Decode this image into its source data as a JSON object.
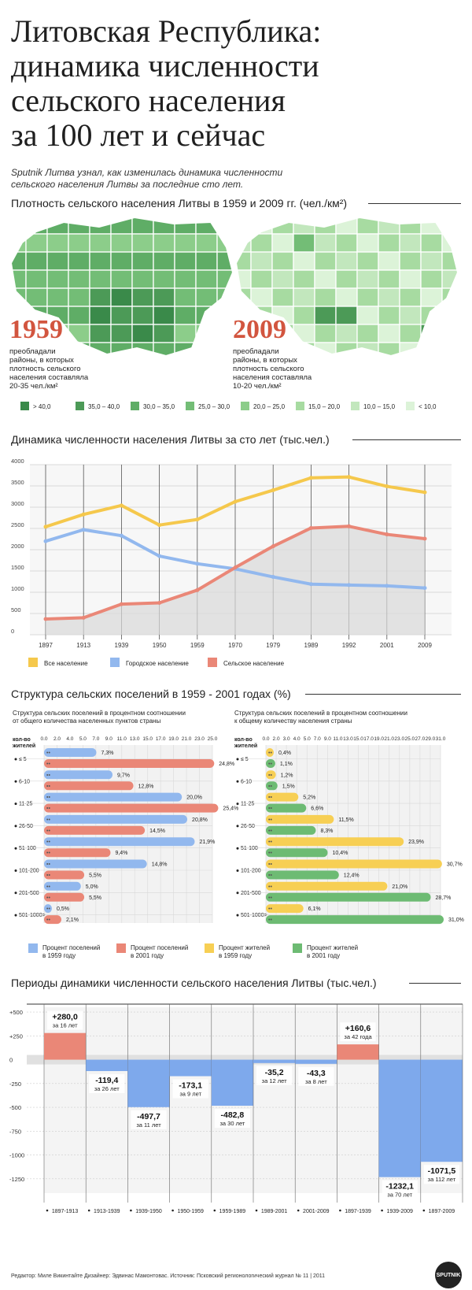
{
  "header": {
    "title_lines": [
      "Литовская Республика:",
      "динамика численности",
      "сельского населения",
      "за 100 лет и сейчас"
    ],
    "lead_lines": [
      "Sputnik Литва узнал, как изменилась динамика численности",
      "сельского населения Литвы за последние сто лет."
    ]
  },
  "colors": {
    "all": "#f5c84c",
    "urban": "#92b8ee",
    "rural": "#ea8777",
    "res1959": "#f7cf54",
    "res2001": "#6dbb73",
    "neg_bar": "#7ea9ec",
    "pos_bar": "#ea8777",
    "density": [
      "#3a8a4a",
      "#4c9a57",
      "#5fad66",
      "#73bd76",
      "#8ccd8a",
      "#a7dba1",
      "#c2e7bd",
      "#dcf3d8"
    ]
  },
  "maps": {
    "title": "Плотность сельского населения Литвы в 1959 и 2009 гг. (чел./км²)",
    "left": {
      "year": "1959",
      "text": [
        "преобладали",
        "районы, в которых",
        "плотность сельского",
        "населения составляла",
        "20-35 чел./км²"
      ]
    },
    "right": {
      "year": "2009",
      "text": [
        "преобладали",
        "районы, в которых",
        "плотность сельского",
        "населения составляла",
        "10-20 чел./км²"
      ]
    },
    "legend": [
      "> 40,0",
      "35,0 – 40,0",
      "30,0 – 35,0",
      "25,0 – 30,0",
      "20,0 – 25,0",
      "15,0 – 20,0",
      "10,0 – 15,0",
      "< 10,0"
    ]
  },
  "chart_data": [
    {
      "type": "line",
      "title": "Динамика численности населения Литвы за сто лет (тыс.чел.)",
      "x": [
        "1897",
        "1913",
        "1939",
        "1950",
        "1959",
        "1970",
        "1979",
        "1989",
        "1992",
        "2001",
        "2009"
      ],
      "ylim": [
        0,
        4000
      ],
      "yticks": [
        0,
        500,
        1000,
        1500,
        2000,
        2500,
        3000,
        3500,
        4000
      ],
      "series": [
        {
          "name": "Все население",
          "color": "#f5c84c",
          "values": [
            2540,
            2830,
            3040,
            2580,
            2710,
            3130,
            3400,
            3690,
            3710,
            3490,
            3350
          ]
        },
        {
          "name": "Городское население",
          "color": "#92b8ee",
          "values": [
            2200,
            2470,
            2330,
            1850,
            1670,
            1550,
            1360,
            1190,
            1170,
            1150,
            1100
          ]
        },
        {
          "name": "Сельское население",
          "color": "#ea8777",
          "values": [
            370,
            400,
            720,
            750,
            1050,
            1580,
            2080,
            2510,
            2550,
            2360,
            2260
          ]
        }
      ],
      "grid": true,
      "legend_position": "bottom"
    },
    {
      "type": "bar",
      "title": "Структура сельских поселений в 1959 - 2001 годах (%)",
      "panel_title": [
        "Структура сельских поселений в процентном соотношении",
        "от общего количества населенных пунктов страны"
      ],
      "group_header": [
        "кол-во",
        "жителей"
      ],
      "categories": [
        "≤ 5",
        "6-10",
        "11-25",
        "26-50",
        "51-100",
        "101-200",
        "201-500",
        "501-1000>"
      ],
      "xticks": [
        "0.0",
        "2.0",
        "4.0",
        "5.0",
        "7.0",
        "9.0",
        "11.0",
        "13.0",
        "15.0",
        "17.0",
        "19.0",
        "21.0",
        "23.0",
        "25.0"
      ],
      "xlim": [
        0,
        25
      ],
      "series": [
        {
          "name": "Процент поселений в 1959 году",
          "color": "#92b8ee",
          "values": [
            7.3,
            9.7,
            20.0,
            20.8,
            21.9,
            14.8,
            5.0,
            0.5
          ],
          "labels": [
            "7,3%",
            "9,7%",
            "20,0%",
            "20,8%",
            "21,9%",
            "14,8%",
            "5,0%",
            "0,5%"
          ]
        },
        {
          "name": "Процент поселений в 2001 году",
          "color": "#ea8777",
          "values": [
            24.8,
            12.8,
            25.4,
            14.5,
            9.4,
            5.5,
            5.5,
            2.1
          ],
          "labels": [
            "24,8%",
            "12,8%",
            "25,4%",
            "14,5%",
            "9,4%",
            "5,5%",
            "5,5%",
            "2,1%"
          ]
        }
      ]
    },
    {
      "type": "bar",
      "panel_title": [
        "Структура сельских поселений в процентном соотношении",
        "к общему количеству населения страны"
      ],
      "group_header": [
        "кол-во",
        "жителей"
      ],
      "categories": [
        "≤ 5",
        "6-10",
        "11-25",
        "26-50",
        "51-100",
        "101-200",
        "201-500",
        "501-1000>"
      ],
      "xticks": [
        "0.0",
        "2.0",
        "3.0",
        "4.0",
        "5.0",
        "7.0",
        "9.0",
        "11.0",
        "13.0",
        "15.0",
        "17.0",
        "19.0",
        "21.0",
        "23.0",
        "25.0",
        "27.0",
        "29.0",
        "31.0"
      ],
      "xlim": [
        0,
        31
      ],
      "series": [
        {
          "name": "Процент жителей в 1959 году",
          "color": "#f7cf54",
          "values": [
            0.4,
            1.2,
            5.2,
            11.5,
            23.9,
            30.7,
            21.0,
            6.1
          ],
          "labels": [
            "0,4%",
            "1,2%",
            "5,2%",
            "11,5%",
            "23,9%",
            "30,7%",
            "21,0%",
            "6,1%"
          ]
        },
        {
          "name": "Процент жителей в 2001 году",
          "color": "#6dbb73",
          "values": [
            1.1,
            1.5,
            6.6,
            8.3,
            10.4,
            12.4,
            28.7,
            31.0
          ],
          "labels": [
            "1,1%",
            "1,5%",
            "6,6%",
            "8,3%",
            "10,4%",
            "12,4%",
            "28,7%",
            "31,0%"
          ]
        }
      ]
    },
    {
      "type": "bar",
      "title": "Периоды динамики численности сельского населения Литвы  (тыс.чел.)",
      "categories": [
        "1897-1913",
        "1913-1939",
        "1939-1950",
        "1950-1959",
        "1959-1989",
        "1989-2001",
        "2001-2009",
        "1897-1939",
        "1939-2009",
        "1897-2009"
      ],
      "values": [
        280.0,
        -119.4,
        -497.7,
        -173.1,
        -482.8,
        -35.2,
        -43.3,
        160.6,
        -1232.1,
        -1071.5
      ],
      "value_labels": [
        "+280,0",
        "-119,4",
        "-497,7",
        "-173,1",
        "-482,8",
        "-35,2",
        "-43,3",
        "+160,6",
        "-1232,1",
        "-1071,5"
      ],
      "period_labels": [
        "за 16 лет",
        "за 26 лет",
        "за 11 лет",
        "за 9 лет",
        "за 30 лет",
        "за 12 лет",
        "за 8 лет",
        "за 42 года",
        "за 70 лет",
        "за 112 лет"
      ],
      "yticks": [
        500,
        250,
        0,
        -250,
        -500,
        -750,
        -1000,
        -1250
      ],
      "ytick_labels": [
        "+500",
        "+250",
        "0",
        "-250",
        "-500",
        "-750",
        "-1000",
        "-1250"
      ],
      "ylim": [
        -1400,
        550
      ]
    }
  ],
  "footer": {
    "credits": "Редактор: Миле Викинтайте  Дизайнер: Эдвинас Мамонтовас.  Источник: Псковский регионологический журнал № 11 | 2011",
    "logo": "SPUTNIK"
  }
}
